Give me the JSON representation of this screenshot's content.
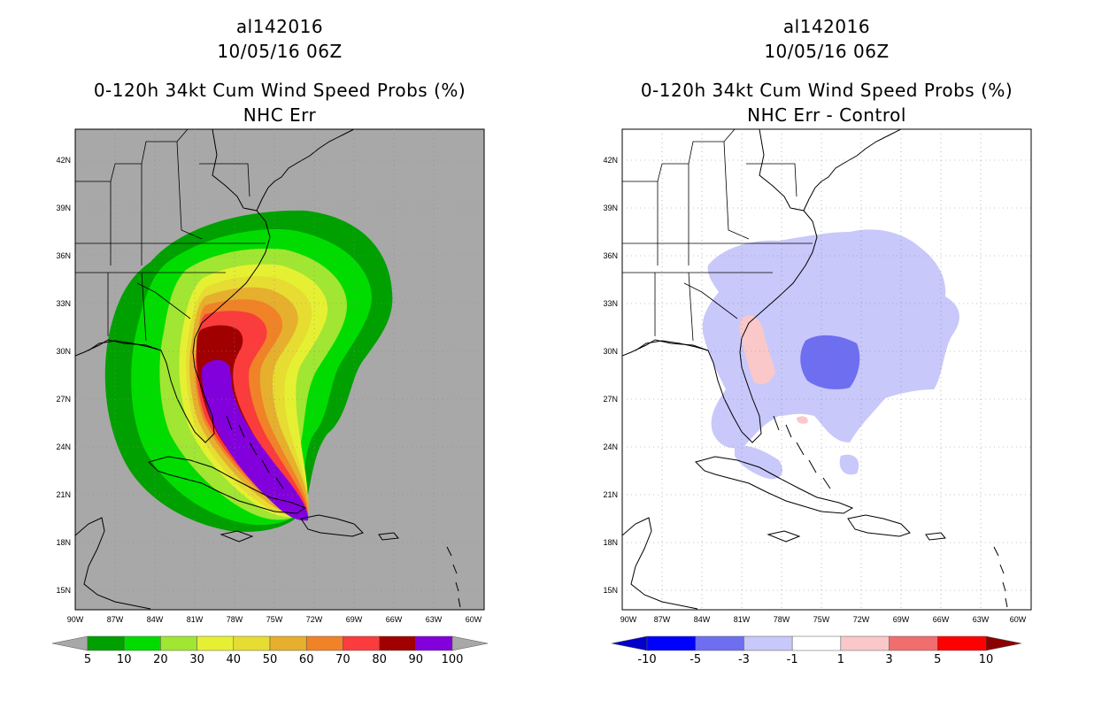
{
  "left": {
    "storm_id": "al142016",
    "datetime": "10/05/16 06Z",
    "product": "0-120h 34kt Cum Wind Speed Probs (%)",
    "subtitle": "NHC Err",
    "background": "#a8a8a8",
    "colorbar": {
      "labels": [
        "5",
        "10",
        "20",
        "30",
        "40",
        "50",
        "60",
        "70",
        "80",
        "90",
        "100"
      ],
      "colors": [
        "#00a000",
        "#00dc00",
        "#a0e632",
        "#e6f032",
        "#e6dc32",
        "#e6af2d",
        "#f08228",
        "#fa3c3c",
        "#a00000",
        "#8200dc"
      ],
      "under_color": "#a8a8a8",
      "over_color": "#a8a8a8"
    }
  },
  "right": {
    "storm_id": "al142016",
    "datetime": "10/05/16 06Z",
    "product": "0-120h 34kt Cum Wind Speed Probs (%)",
    "subtitle": "NHC Err - Control",
    "background": "#ffffff",
    "colorbar": {
      "labels": [
        "-10",
        "-5",
        "-3",
        "-1",
        "1",
        "3",
        "5",
        "10"
      ],
      "colors": [
        "#0000ff",
        "#6e6ef0",
        "#c8c8fa",
        "#ffffff",
        "#fac8c8",
        "#f06e6e",
        "#ff0000"
      ],
      "under_color": "#0000c8",
      "over_color": "#8b0000"
    }
  },
  "axes": {
    "lat_labels": [
      "42N",
      "39N",
      "36N",
      "33N",
      "30N",
      "27N",
      "24N",
      "21N",
      "18N",
      "15N"
    ],
    "lon_labels": [
      "90W",
      "87W",
      "84W",
      "81W",
      "78W",
      "75W",
      "72W",
      "69W",
      "66W",
      "63W",
      "60W"
    ],
    "lat_range": [
      13.5,
      44
    ],
    "lon_range": [
      -90,
      -59.5
    ]
  },
  "chart_data": [
    {
      "type": "heatmap",
      "title": "0-120h 34kt Cum Wind Speed Probs (%) — NHC Err",
      "variable": "cumulative probability of 34 kt winds",
      "units": "%",
      "levels": [
        5,
        10,
        20,
        30,
        40,
        50,
        60,
        70,
        80,
        90,
        100
      ],
      "lat_range": [
        13.5,
        44
      ],
      "lon_range": [
        -90,
        -59.5
      ]
    },
    {
      "type": "heatmap",
      "title": "0-120h 34kt Cum Wind Speed Probs (%) — NHC Err - Control",
      "variable": "difference in cumulative probability",
      "units": "%",
      "levels": [
        -10,
        -5,
        -3,
        -1,
        1,
        3,
        5,
        10
      ],
      "lat_range": [
        13.5,
        44
      ],
      "lon_range": [
        -90,
        -59.5
      ]
    }
  ]
}
